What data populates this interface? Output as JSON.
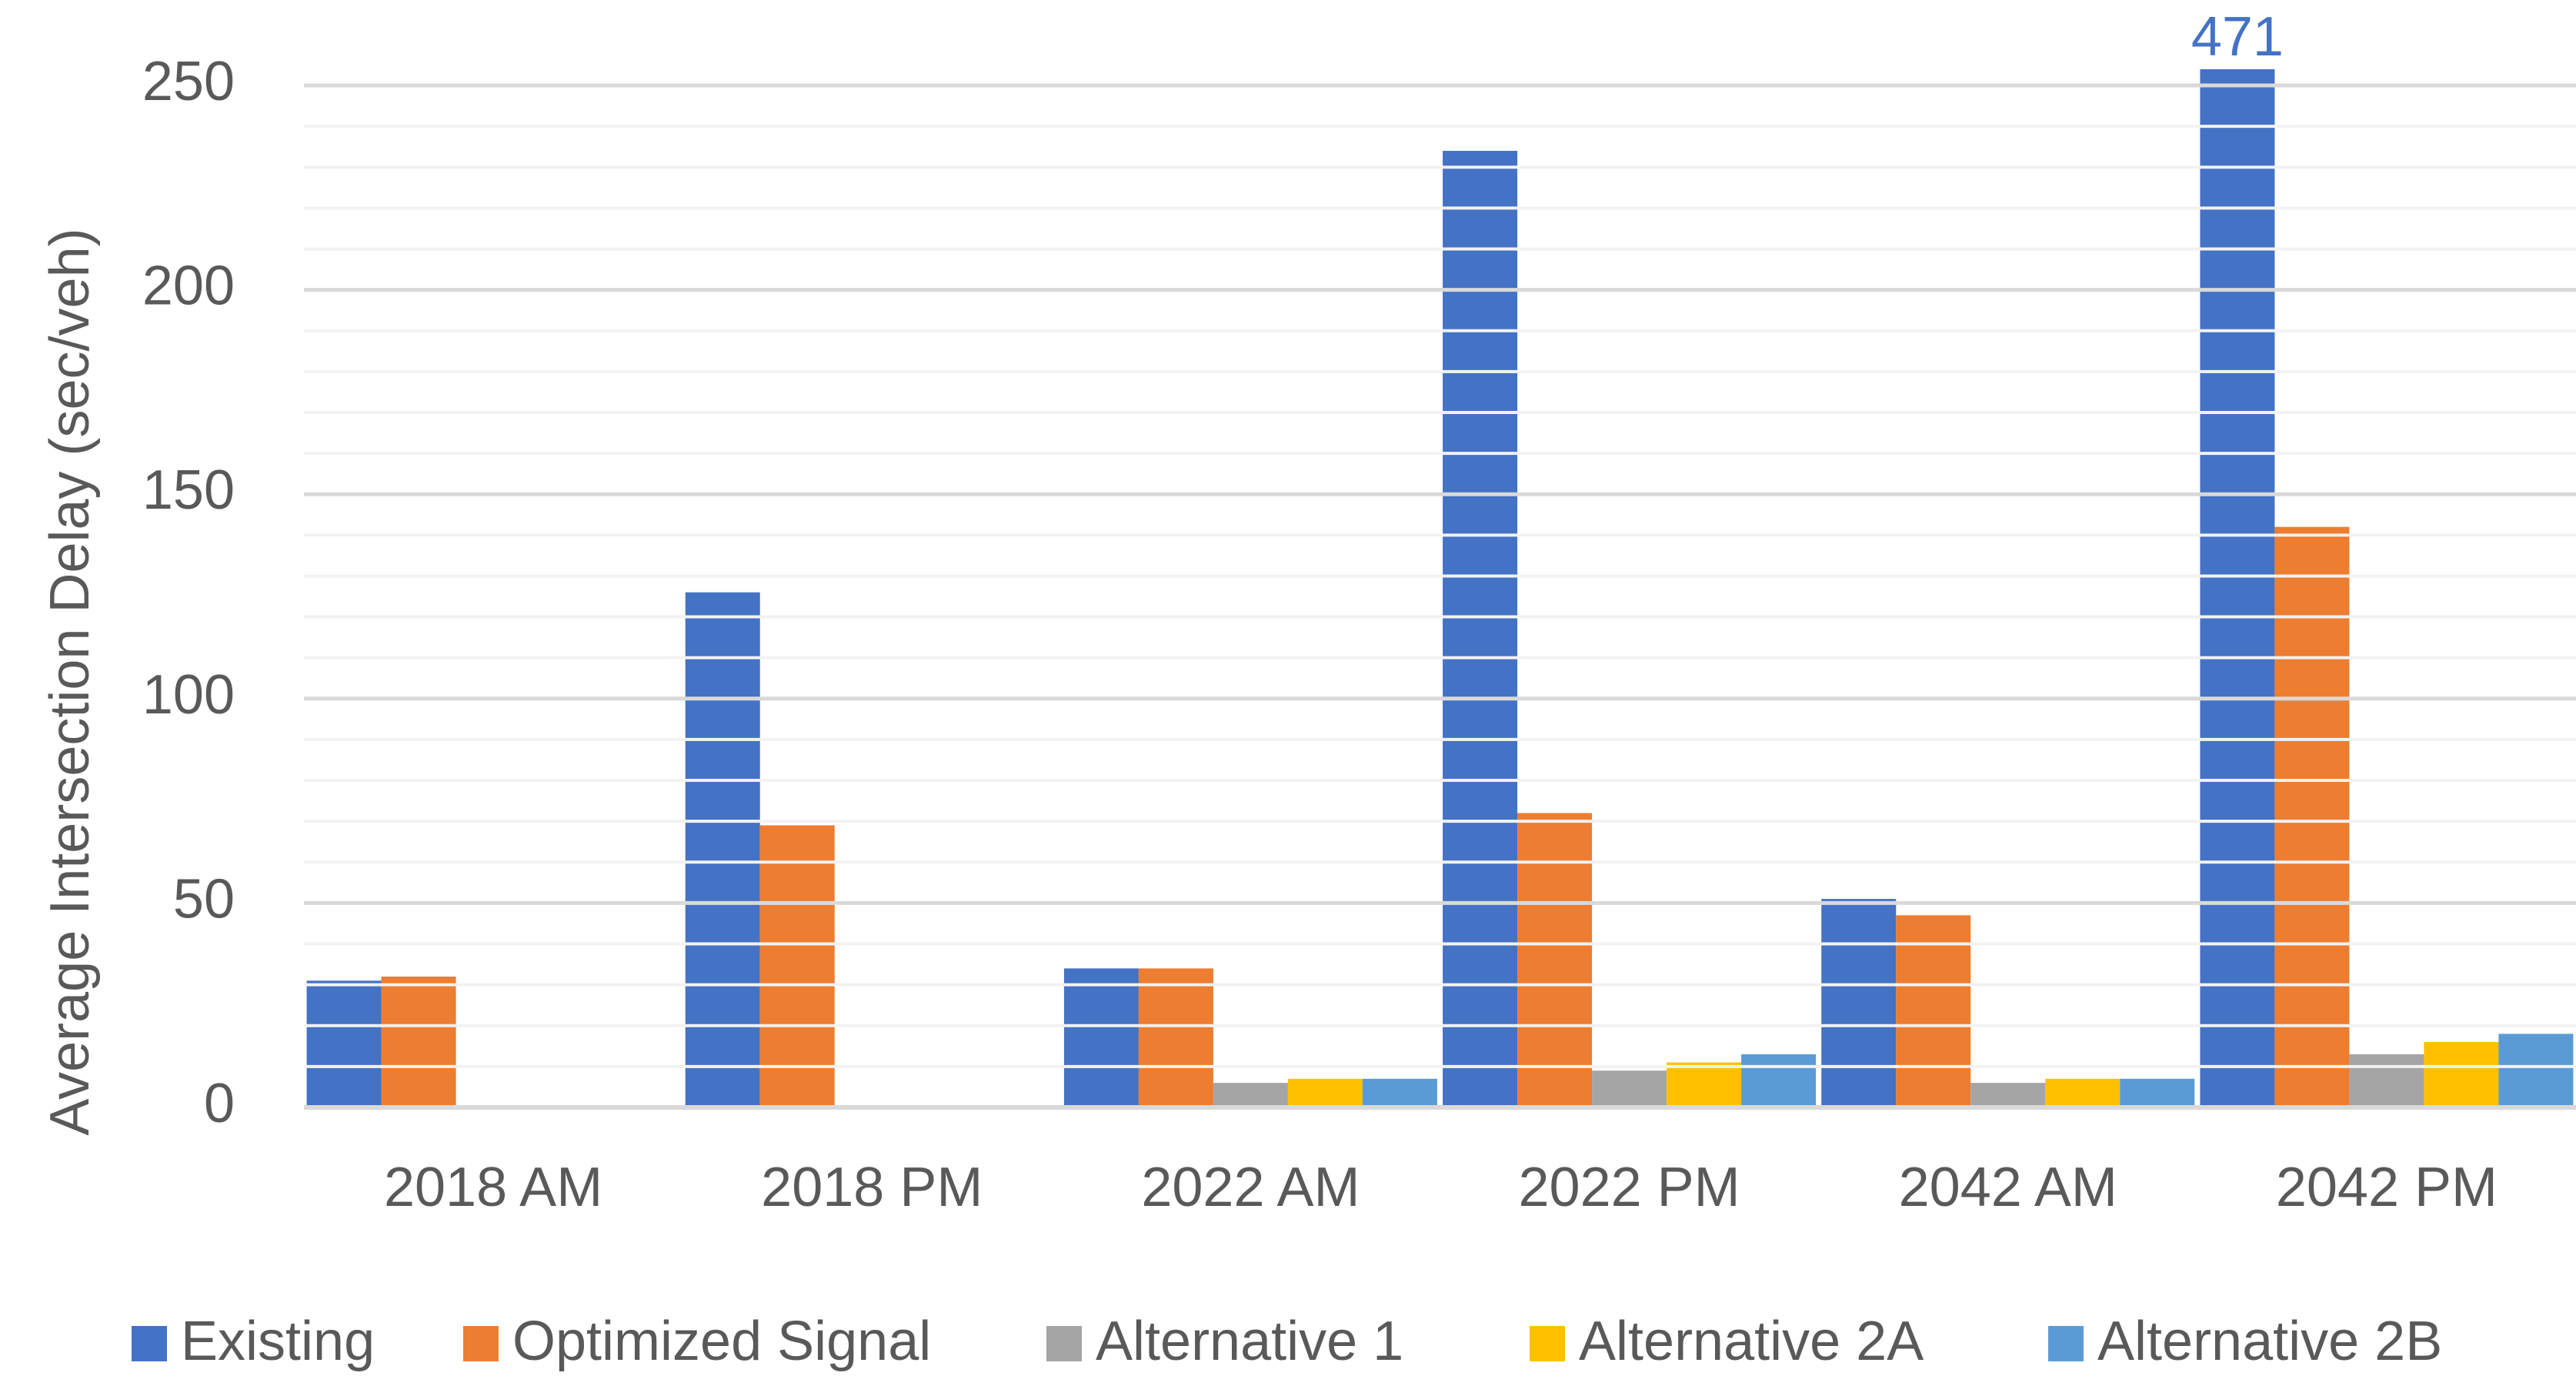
{
  "chart_data": {
    "type": "bar",
    "y_label": "Average Intersection Delay (sec/veh)",
    "categories": [
      "2018 AM",
      "2018 PM",
      "2022 AM",
      "2022 PM",
      "2042 AM",
      "2042 PM"
    ],
    "series": [
      {
        "name": "Existing",
        "color": "#4472c4",
        "values": [
          31,
          126,
          34,
          234,
          51,
          471
        ],
        "value_labels": [
          null,
          null,
          null,
          null,
          null,
          "471"
        ]
      },
      {
        "name": "Optimized Signal",
        "color": "#ed7d31",
        "values": [
          32,
          69,
          34,
          72,
          47,
          142
        ]
      },
      {
        "name": "Alternative 1",
        "color": "#a5a5a5",
        "values": [
          null,
          null,
          6,
          9,
          6,
          13
        ]
      },
      {
        "name": "Alternative 2A",
        "color": "#ffc000",
        "values": [
          null,
          null,
          7,
          11,
          7,
          16
        ]
      },
      {
        "name": "Alternative 2B",
        "color": "#5b9bd5",
        "values": [
          null,
          null,
          7,
          13,
          7,
          18
        ]
      }
    ],
    "ylim": [
      0,
      250
    ],
    "yticks": [
      0,
      50,
      100,
      150,
      200,
      250
    ],
    "minor_yticks": [
      10,
      20,
      30,
      40,
      60,
      70,
      80,
      90,
      110,
      120,
      130,
      140,
      160,
      170,
      180,
      190,
      210,
      220,
      230,
      240
    ],
    "grid": true,
    "legend": "bottom"
  }
}
